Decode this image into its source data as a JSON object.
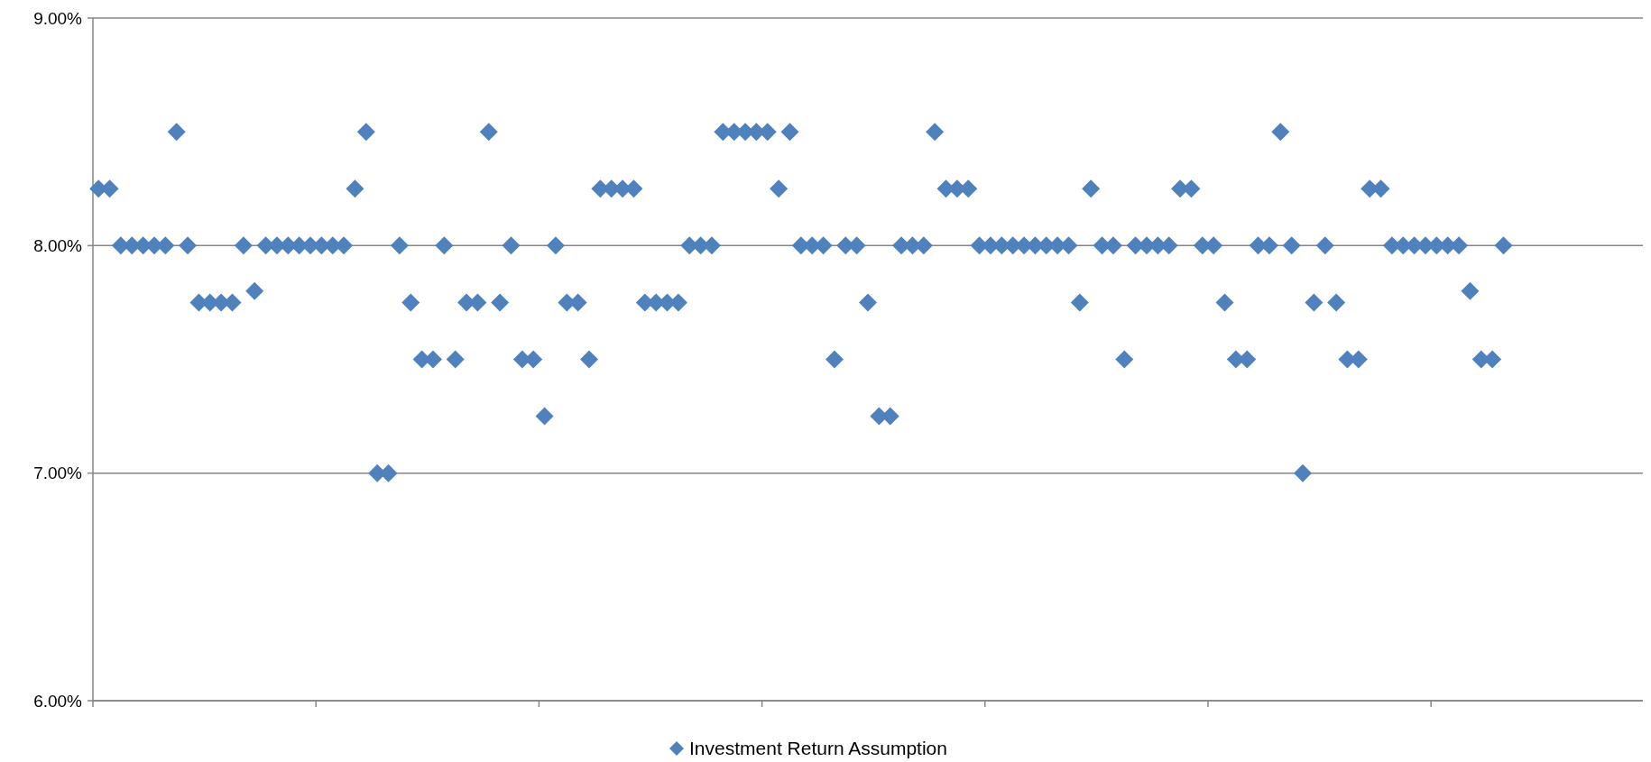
{
  "chart_data": {
    "type": "scatter",
    "categories": [
      null,
      null,
      null,
      null,
      null,
      null,
      null,
      null,
      null,
      null,
      null,
      null,
      null,
      null,
      null,
      null,
      null,
      null,
      null,
      null,
      null,
      null,
      null,
      null,
      null,
      null,
      null,
      null,
      null,
      null,
      null,
      null,
      null,
      null,
      null,
      null,
      null,
      null,
      null,
      null,
      null,
      null,
      null,
      null,
      null,
      null,
      null,
      null,
      null,
      null,
      null,
      null,
      null,
      null,
      null,
      null,
      null,
      null,
      null,
      null,
      null,
      null,
      null,
      null,
      null,
      null,
      null,
      null,
      null,
      null,
      null,
      null,
      null,
      null,
      null,
      null,
      null,
      null,
      null,
      null,
      null,
      null,
      null,
      null,
      null,
      null,
      null,
      null,
      null,
      null,
      null,
      null,
      null,
      null,
      null,
      null,
      null,
      null,
      null,
      null,
      null,
      null,
      null,
      null,
      null,
      null,
      null,
      null,
      null,
      null,
      null,
      null,
      null,
      null,
      null,
      null,
      null,
      null,
      null,
      null,
      null,
      null,
      null,
      null,
      null,
      null,
      null,
      null,
      null,
      null,
      null,
      null,
      null,
      null,
      null,
      null,
      null,
      null,
      null
    ],
    "series": [
      {
        "name": "Investment Return Assumption",
        "color": "#4f81bd",
        "values": [
          8.25,
          8.25,
          8.0,
          8.0,
          8.0,
          8.0,
          8.0,
          8.5,
          8.0,
          7.75,
          7.75,
          7.75,
          7.75,
          8.0,
          7.8,
          8.0,
          8.0,
          8.0,
          8.0,
          8.0,
          8.0,
          8.0,
          8.0,
          8.25,
          8.5,
          7.0,
          7.0,
          8.0,
          7.75,
          7.5,
          7.5,
          8.0,
          7.5,
          7.75,
          7.75,
          8.5,
          7.75,
          8.0,
          7.5,
          7.5,
          7.25,
          8.0,
          7.75,
          7.75,
          7.5,
          8.25,
          8.25,
          8.25,
          8.25,
          7.75,
          7.75,
          7.75,
          7.75,
          8.0,
          8.0,
          8.0,
          8.5,
          8.5,
          8.5,
          8.5,
          8.5,
          8.25,
          8.5,
          8.0,
          8.0,
          8.0,
          7.5,
          8.0,
          8.0,
          7.75,
          7.25,
          7.25,
          8.0,
          8.0,
          8.0,
          8.5,
          8.25,
          8.25,
          8.25,
          8.0,
          8.0,
          8.0,
          8.0,
          8.0,
          8.0,
          8.0,
          8.0,
          8.0,
          7.75,
          8.25,
          8.0,
          8.0,
          7.5,
          8.0,
          8.0,
          8.0,
          8.0,
          8.25,
          8.25,
          8.0,
          8.0,
          7.75,
          7.5,
          7.5,
          8.0,
          8.0,
          8.5,
          8.0,
          7.0,
          7.75,
          8.0,
          7.75,
          7.5,
          7.5,
          8.25,
          8.25,
          8.0,
          8.0,
          8.0,
          8.0,
          8.0,
          8.0,
          8.0,
          7.8,
          7.5,
          7.5,
          8.0,
          null,
          null,
          null,
          null,
          null,
          null,
          null,
          null,
          null,
          null,
          null,
          null
        ]
      }
    ],
    "ylim": [
      6,
      9
    ],
    "yticks": [
      {
        "value": 6,
        "label": "6.00%"
      },
      {
        "value": 7,
        "label": "7.00%"
      },
      {
        "value": 8,
        "label": "8.00%"
      },
      {
        "value": 9,
        "label": "9.00%"
      }
    ],
    "grid": "y",
    "legend": "bottom",
    "marker": "diamond"
  }
}
